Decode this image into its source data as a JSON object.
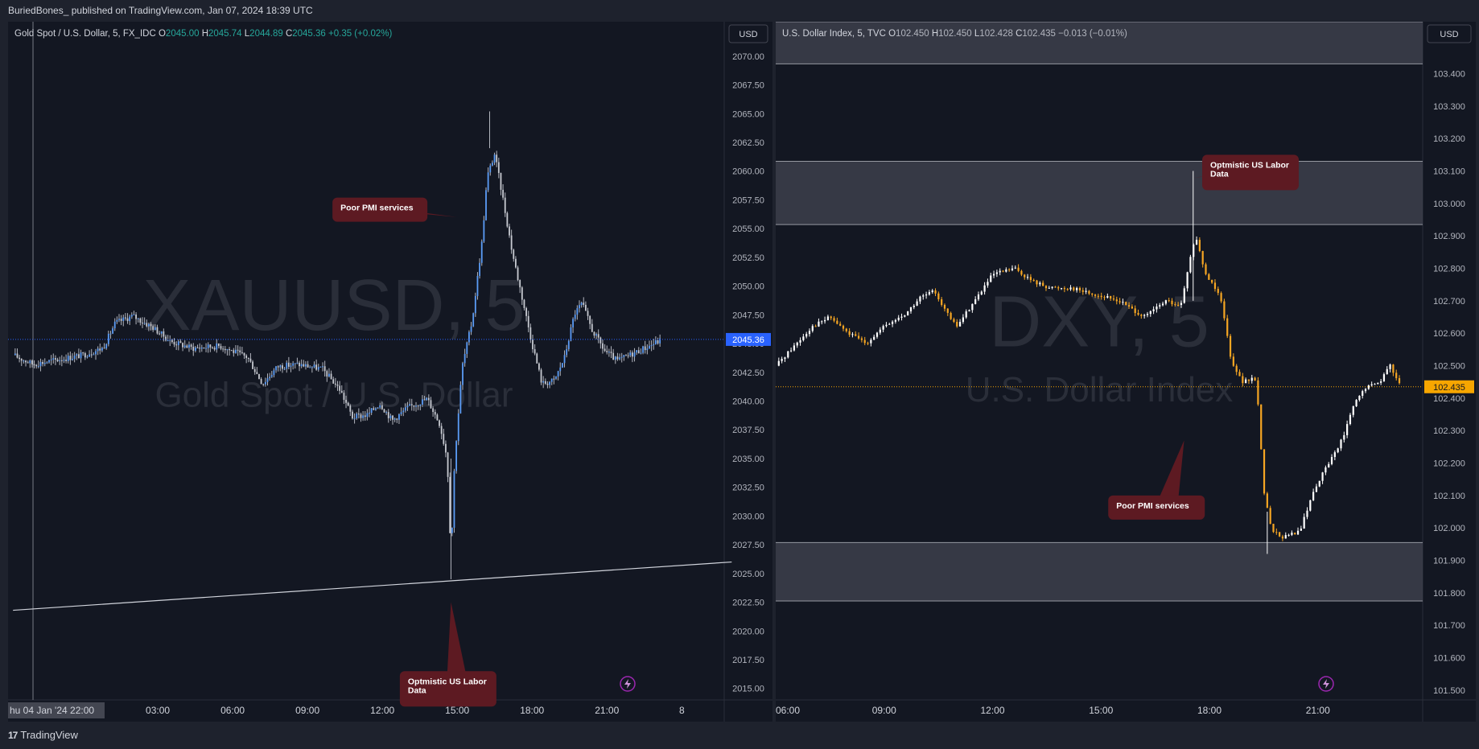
{
  "header": {
    "publisher_line": "BuriedBones_ published on TradingView.com, Jan 07, 2024 18:39 UTC"
  },
  "footer": {
    "brand": "TradingView",
    "logo_mark": "17"
  },
  "colors": {
    "bg": "#131722",
    "panel": "#1e222d",
    "gold_candle": "#5b9cf6",
    "gold_wick": "#b2b5be",
    "dxy_up": "#ffffff",
    "dxy_down": "#f6a623",
    "zone": "#434651",
    "callout": "#5d1a22",
    "accent_last_gold": "#2962ff",
    "accent_last_dxy": "#f7a600"
  },
  "chart_data": [
    {
      "type": "candlestick",
      "symbol_line": {
        "name": "Gold Spot / U.S. Dollar, 5, FX_IDC",
        "o_label": "O",
        "o": "2045.00",
        "h_label": "H",
        "h": "2045.74",
        "l_label": "L",
        "l": "2044.89",
        "c_label": "C",
        "c": "2045.36",
        "change": "+0.35 (+0.02%)"
      },
      "watermark": {
        "ticker": "XAUUSD, 5",
        "description": "Gold Spot / U.S. Dollar"
      },
      "currency": "USD",
      "last_price": "2045.36",
      "ylim": [
        2014,
        2073
      ],
      "y_ticks": [
        "2070.00",
        "2067.50",
        "2065.00",
        "2062.50",
        "2060.00",
        "2057.50",
        "2055.00",
        "2052.50",
        "2050.00",
        "2047.50",
        "2045.00",
        "2042.50",
        "2040.00",
        "2037.50",
        "2035.00",
        "2032.50",
        "2030.00",
        "2027.50",
        "2025.00",
        "2022.50",
        "2020.00",
        "2017.50",
        "2015.00"
      ],
      "x_time_range": [
        21.5,
        31.0
      ],
      "x_ticks": [
        {
          "t": 22.0,
          "label": "hu 04 Jan '24  22:00"
        },
        {
          "t": 27.0,
          "label": "03:00"
        },
        {
          "t": 30.0,
          "label": "06:00"
        },
        {
          "t": 33.0,
          "label": "09:00"
        },
        {
          "t": 36.0,
          "label": "12:00"
        },
        {
          "t": 39.0,
          "label": "15:00"
        },
        {
          "t": 42.0,
          "label": "18:00"
        },
        {
          "t": 45.0,
          "label": "21:00"
        },
        {
          "t": 48.0,
          "label": "8"
        }
      ],
      "path": [
        [
          21.2,
          2044.0
        ],
        [
          22.0,
          2043.2
        ],
        [
          23.0,
          2043.6
        ],
        [
          24.0,
          2044.0
        ],
        [
          24.8,
          2044.6
        ],
        [
          25.3,
          2046.8
        ],
        [
          26.0,
          2047.4
        ],
        [
          26.8,
          2046.4
        ],
        [
          27.5,
          2045.2
        ],
        [
          28.4,
          2044.6
        ],
        [
          29.5,
          2044.8
        ],
        [
          30.6,
          2043.8
        ],
        [
          31.2,
          2041.5
        ],
        [
          31.8,
          2043.0
        ],
        [
          32.6,
          2043.2
        ],
        [
          33.6,
          2042.8
        ],
        [
          34.3,
          2041.0
        ],
        [
          34.8,
          2038.6
        ],
        [
          35.4,
          2038.8
        ],
        [
          35.9,
          2039.8
        ],
        [
          36.4,
          2038.3
        ],
        [
          37.0,
          2039.4
        ],
        [
          37.8,
          2040.2
        ],
        [
          38.3,
          2038.0
        ],
        [
          38.6,
          2035.0
        ],
        [
          38.75,
          2026.5
        ],
        [
          38.9,
          2035.0
        ],
        [
          39.2,
          2043.0
        ],
        [
          39.6,
          2047.0
        ],
        [
          40.0,
          2054.0
        ],
        [
          40.2,
          2059.5
        ],
        [
          40.5,
          2061.5
        ],
        [
          40.8,
          2058.0
        ],
        [
          41.2,
          2053.0
        ],
        [
          41.6,
          2049.0
        ],
        [
          42.0,
          2045.0
        ],
        [
          42.4,
          2041.5
        ],
        [
          42.9,
          2041.8
        ],
        [
          43.3,
          2043.8
        ],
        [
          43.7,
          2047.6
        ],
        [
          44.0,
          2048.5
        ],
        [
          44.4,
          2046.2
        ],
        [
          44.9,
          2044.4
        ],
        [
          45.4,
          2043.5
        ],
        [
          46.0,
          2044.1
        ],
        [
          46.7,
          2044.8
        ],
        [
          47.2,
          2045.36
        ]
      ],
      "trendline": [
        [
          21.2,
          2021.8
        ],
        [
          50.0,
          2026.0
        ]
      ],
      "annotations": [
        {
          "text": "Poor PMI services",
          "x": 34.0,
          "y": 2057.7,
          "point_x": 39.0,
          "point_y": 2056.0
        },
        {
          "text": "Optmistic US Labor Data",
          "x": 36.7,
          "y": 2016.5,
          "point_x": 38.75,
          "point_y": 2022.5
        }
      ]
    },
    {
      "type": "candlestick",
      "symbol_line": {
        "name": "U.S. Dollar Index, 5, TVC",
        "o_label": "O",
        "o": "102.450",
        "h_label": "H",
        "h": "102.450",
        "l_label": "L",
        "l": "102.428",
        "c_label": "C",
        "c": "102.435",
        "change": "−0.013 (−0.01%)"
      },
      "watermark": {
        "ticker": "DXY, 5",
        "description": "U.S. Dollar Index"
      },
      "currency": "USD",
      "last_price": "102.435",
      "ylim": [
        101.47,
        103.56
      ],
      "y_ticks": [
        "103.400",
        "103.300",
        "103.200",
        "103.100",
        "103.000",
        "102.900",
        "102.800",
        "102.700",
        "102.600",
        "102.500",
        "102.400",
        "102.300",
        "102.200",
        "102.100",
        "102.000",
        "101.900",
        "101.800",
        "101.700",
        "101.600",
        "101.500"
      ],
      "x_time_range": [
        6.0,
        23.4
      ],
      "x_ticks": [
        {
          "t": 6.0,
          "label": "06:00"
        },
        {
          "t": 9.0,
          "label": "09:00"
        },
        {
          "t": 12.0,
          "label": "12:00"
        },
        {
          "t": 15.0,
          "label": "15:00"
        },
        {
          "t": 18.0,
          "label": "18:00"
        },
        {
          "t": 21.0,
          "label": "21:00"
        }
      ],
      "zones": [
        [
          103.43,
          103.56
        ],
        [
          102.935,
          103.13
        ],
        [
          101.775,
          101.955
        ]
      ],
      "path": [
        [
          6.0,
          102.5
        ],
        [
          6.5,
          102.56
        ],
        [
          7.0,
          102.62
        ],
        [
          7.5,
          102.65
        ],
        [
          8.0,
          102.6
        ],
        [
          8.5,
          102.57
        ],
        [
          9.0,
          102.62
        ],
        [
          9.6,
          102.66
        ],
        [
          10.0,
          102.71
        ],
        [
          10.4,
          102.73
        ],
        [
          10.8,
          102.65
        ],
        [
          11.0,
          102.62
        ],
        [
          11.5,
          102.7
        ],
        [
          12.0,
          102.78
        ],
        [
          12.6,
          102.8
        ],
        [
          13.1,
          102.76
        ],
        [
          13.6,
          102.74
        ],
        [
          14.2,
          102.74
        ],
        [
          14.8,
          102.72
        ],
        [
          15.5,
          102.7
        ],
        [
          16.2,
          102.65
        ],
        [
          16.8,
          102.7
        ],
        [
          17.2,
          102.68
        ],
        [
          17.6,
          102.9
        ],
        [
          17.9,
          102.78
        ],
        [
          18.3,
          102.72
        ],
        [
          18.6,
          102.52
        ],
        [
          18.9,
          102.45
        ],
        [
          19.3,
          102.46
        ],
        [
          19.5,
          102.12
        ],
        [
          19.7,
          102.0
        ],
        [
          20.0,
          101.97
        ],
        [
          20.5,
          101.99
        ],
        [
          20.9,
          102.12
        ],
        [
          21.3,
          102.2
        ],
        [
          21.7,
          102.28
        ],
        [
          22.0,
          102.38
        ],
        [
          22.3,
          102.43
        ],
        [
          22.7,
          102.45
        ],
        [
          23.0,
          102.5
        ],
        [
          23.3,
          102.44
        ]
      ],
      "annotations": [
        {
          "text": "Optmistic US Labor Data",
          "x": 17.8,
          "y": 103.15,
          "point_x": 17.55,
          "point_y": 103.08
        },
        {
          "text": "Poor PMI services",
          "x": 15.2,
          "y": 102.1,
          "point_x": 17.3,
          "point_y": 102.27
        }
      ]
    }
  ]
}
